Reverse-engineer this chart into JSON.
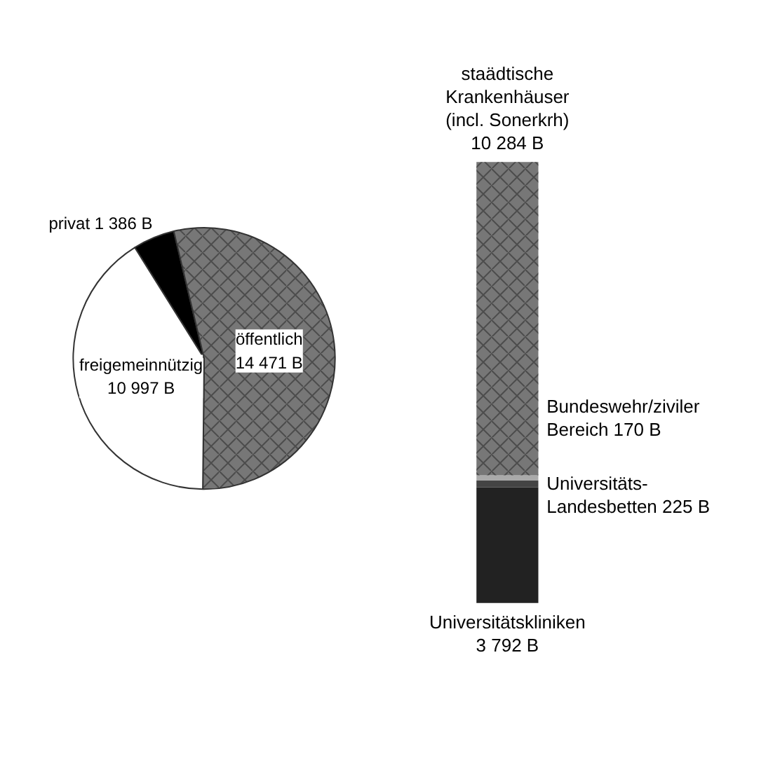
{
  "chart_data": [
    {
      "type": "pie",
      "categories": [
        "privat",
        "öffentlich",
        "freigemeinnützig"
      ],
      "values": [
        1386,
        14471,
        10997
      ],
      "colors": [
        "#000000",
        "#777777",
        "#ffffff"
      ],
      "value_labels": [
        "1 386 B",
        "14 471 B",
        "10 997 B"
      ]
    },
    {
      "type": "bar",
      "stacked": true,
      "categories": [
        null
      ],
      "series": [
        {
          "name": "Universitätskliniken",
          "color": "#222222",
          "values": [
            3792
          ],
          "value_labels": [
            "3 792 B"
          ]
        },
        {
          "name": "Universitäts-Landesbetten",
          "color": "#444444",
          "values": [
            225
          ],
          "value_labels": [
            "225 B"
          ]
        },
        {
          "name": "Bundeswehr/ziviler Bereich",
          "color": "#aaaaaa",
          "values": [
            170
          ],
          "value_labels": [
            "170 B"
          ]
        },
        {
          "name": "staädtische Krankenhäuser (incl. Sonerkrh)",
          "color": "#777777",
          "values": [
            10284
          ],
          "value_labels": [
            "10 284 B"
          ]
        }
      ]
    }
  ]
}
